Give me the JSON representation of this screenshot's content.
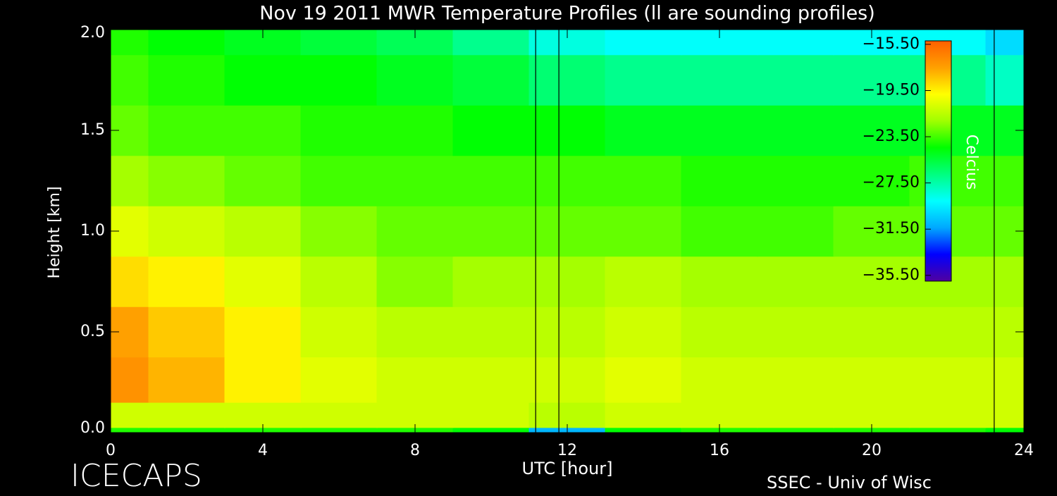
{
  "chart_data": {
    "type": "heatmap",
    "title": "Nov 19 2011 MWR Temperature Profiles (ll are sounding profiles)",
    "x_label": "UTC [hour]",
    "y_label": "Height [km]",
    "colorbar_label": "Celcius",
    "footer_left": "ICECAPS",
    "footer_right": "SSEC - Univ of Wisc",
    "x": [
      0,
      2,
      4,
      6,
      8,
      10,
      12,
      14,
      16,
      18,
      20,
      22,
      24
    ],
    "y": [
      0.0,
      0.05,
      0.25,
      0.5,
      0.75,
      1.0,
      1.25,
      1.5,
      1.75,
      2.0
    ],
    "z": [
      [
        -24,
        -24,
        -24,
        -24,
        -24,
        -24.5,
        -31,
        -24.5,
        -24,
        -24,
        -24,
        -24,
        -24.5
      ],
      [
        -21,
        -21,
        -21,
        -21,
        -21,
        -21,
        -21.5,
        -21,
        -21,
        -21,
        -21,
        -21,
        -21
      ],
      [
        -17,
        -18,
        -19.5,
        -20.5,
        -21,
        -21,
        -21,
        -20.5,
        -21,
        -21,
        -21,
        -21,
        -21
      ],
      [
        -17.5,
        -18.5,
        -19.5,
        -21,
        -21.5,
        -21.5,
        -21.5,
        -21,
        -21.5,
        -21.5,
        -21.5,
        -21.5,
        -21.5
      ],
      [
        -19,
        -19.5,
        -20.5,
        -21.5,
        -22.5,
        -22,
        -22,
        -21.5,
        -22,
        -22,
        -22,
        -22,
        -22
      ],
      [
        -20.5,
        -21,
        -21.5,
        -22.5,
        -23,
        -23,
        -23,
        -23,
        -23.5,
        -23.5,
        -23,
        -23,
        -23
      ],
      [
        -22,
        -22.5,
        -23,
        -23.5,
        -23.5,
        -23.5,
        -23.5,
        -23.5,
        -24,
        -24,
        -24,
        -23.5,
        -23.5
      ],
      [
        -23,
        -23.5,
        -23.5,
        -24,
        -24,
        -24.5,
        -24.5,
        -25,
        -25,
        -25,
        -25,
        -25,
        -25
      ],
      [
        -23.5,
        -24,
        -24.5,
        -24.5,
        -25,
        -25.5,
        -26.5,
        -27,
        -27,
        -27,
        -27,
        -27,
        -28
      ],
      [
        -24,
        -24.5,
        -25,
        -25.5,
        -26,
        -27,
        -28.5,
        -29,
        -29,
        -29,
        -29,
        -29,
        -30
      ]
    ],
    "soundings": [
      11.17,
      11.78,
      23.22
    ],
    "xlim": [
      0,
      24
    ],
    "ylim": [
      0,
      2
    ],
    "zlim": [
      -36,
      -15.2
    ],
    "xticks": [
      0,
      4,
      8,
      12,
      16,
      20,
      24
    ],
    "yticks": [
      {
        "value": 0,
        "label": "0.0"
      },
      {
        "value": 0.5,
        "label": "0.5"
      },
      {
        "value": 1,
        "label": "1.0"
      },
      {
        "value": 1.5,
        "label": "1.5"
      },
      {
        "value": 2,
        "label": "2.0"
      }
    ],
    "zticks": [
      {
        "value": -15.5,
        "label": "−15.50"
      },
      {
        "value": -19.5,
        "label": "−19.50"
      },
      {
        "value": -23.5,
        "label": "−23.50"
      },
      {
        "value": -27.5,
        "label": "−27.50"
      },
      {
        "value": -31.5,
        "label": "−31.50"
      },
      {
        "value": -35.5,
        "label": "−35.50"
      }
    ],
    "colormap": [
      "#5000a0",
      "#0000ff",
      "#00a8ff",
      "#00ffff",
      "#00ff80",
      "#00ff00",
      "#a0ff00",
      "#ffff00",
      "#ffa000",
      "#ff6000"
    ]
  }
}
